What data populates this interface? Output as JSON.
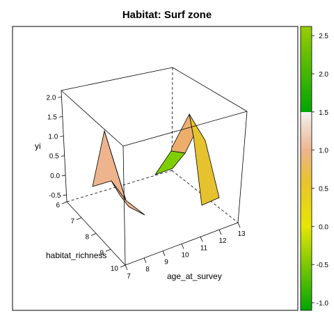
{
  "chart_data": {
    "type": "surface-3d",
    "title": "Habitat: Surf zone",
    "xlabel": "habitat_richness",
    "ylabel": "age_at_survey",
    "zlabel": "yi",
    "x_ticks": [
      "6",
      "7",
      "8",
      "9",
      "10"
    ],
    "y_ticks": [
      "7",
      "8",
      "9",
      "10",
      "11",
      "12",
      "13"
    ],
    "z_ticks": [
      "-0.5",
      "0.0",
      "0.5",
      "1.0",
      "1.5",
      "2.0"
    ],
    "xlim": [
      6,
      10
    ],
    "ylim": [
      7,
      13
    ],
    "zlim": [
      -0.75,
      2.2
    ],
    "colorbar": {
      "ticks": [
        "-1.0",
        "-0.5",
        "0.0",
        "0.5",
        "1.0",
        "1.5",
        "2.0",
        "2.5"
      ],
      "range": [
        -1.1,
        2.62
      ],
      "stops": [
        {
          "v": -1.1,
          "color": "#00a600"
        },
        {
          "v": 0.0,
          "color": "#e6e600"
        },
        {
          "v": 0.6,
          "color": "#e8c32e"
        },
        {
          "v": 1.0,
          "color": "#edb48e"
        },
        {
          "v": 1.5,
          "color": "#f2f2f2"
        },
        {
          "v": 1.5,
          "color": "#00a600"
        },
        {
          "v": 2.62,
          "color": "#99cc00"
        }
      ]
    },
    "patches": [
      {
        "name": "patch-left",
        "color": "#edb48e"
      },
      {
        "name": "patch-left-tail",
        "color": "#edb48e"
      },
      {
        "name": "patch-right-upper",
        "color": "#ebae6b"
      },
      {
        "name": "patch-right-green",
        "color": "#7fcf00"
      },
      {
        "name": "patch-right-strip",
        "color": "#e6c22e"
      }
    ]
  }
}
